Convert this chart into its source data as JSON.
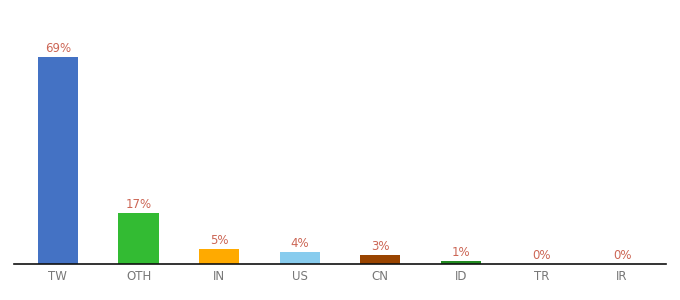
{
  "categories": [
    "TW",
    "OTH",
    "IN",
    "US",
    "CN",
    "ID",
    "TR",
    "IR"
  ],
  "values": [
    69,
    17,
    5,
    4,
    3,
    1,
    0,
    0
  ],
  "labels": [
    "69%",
    "17%",
    "5%",
    "4%",
    "3%",
    "1%",
    "0%",
    "0%"
  ],
  "bar_colors": [
    "#4472C4",
    "#33BB33",
    "#FFAA00",
    "#88CCEE",
    "#994400",
    "#228B22",
    "#aaaaaa",
    "#aaaaaa"
  ],
  "background_color": "#ffffff",
  "ylim": [
    0,
    80
  ],
  "label_fontsize": 8.5,
  "tick_fontsize": 8.5,
  "label_color": "#CC6655"
}
